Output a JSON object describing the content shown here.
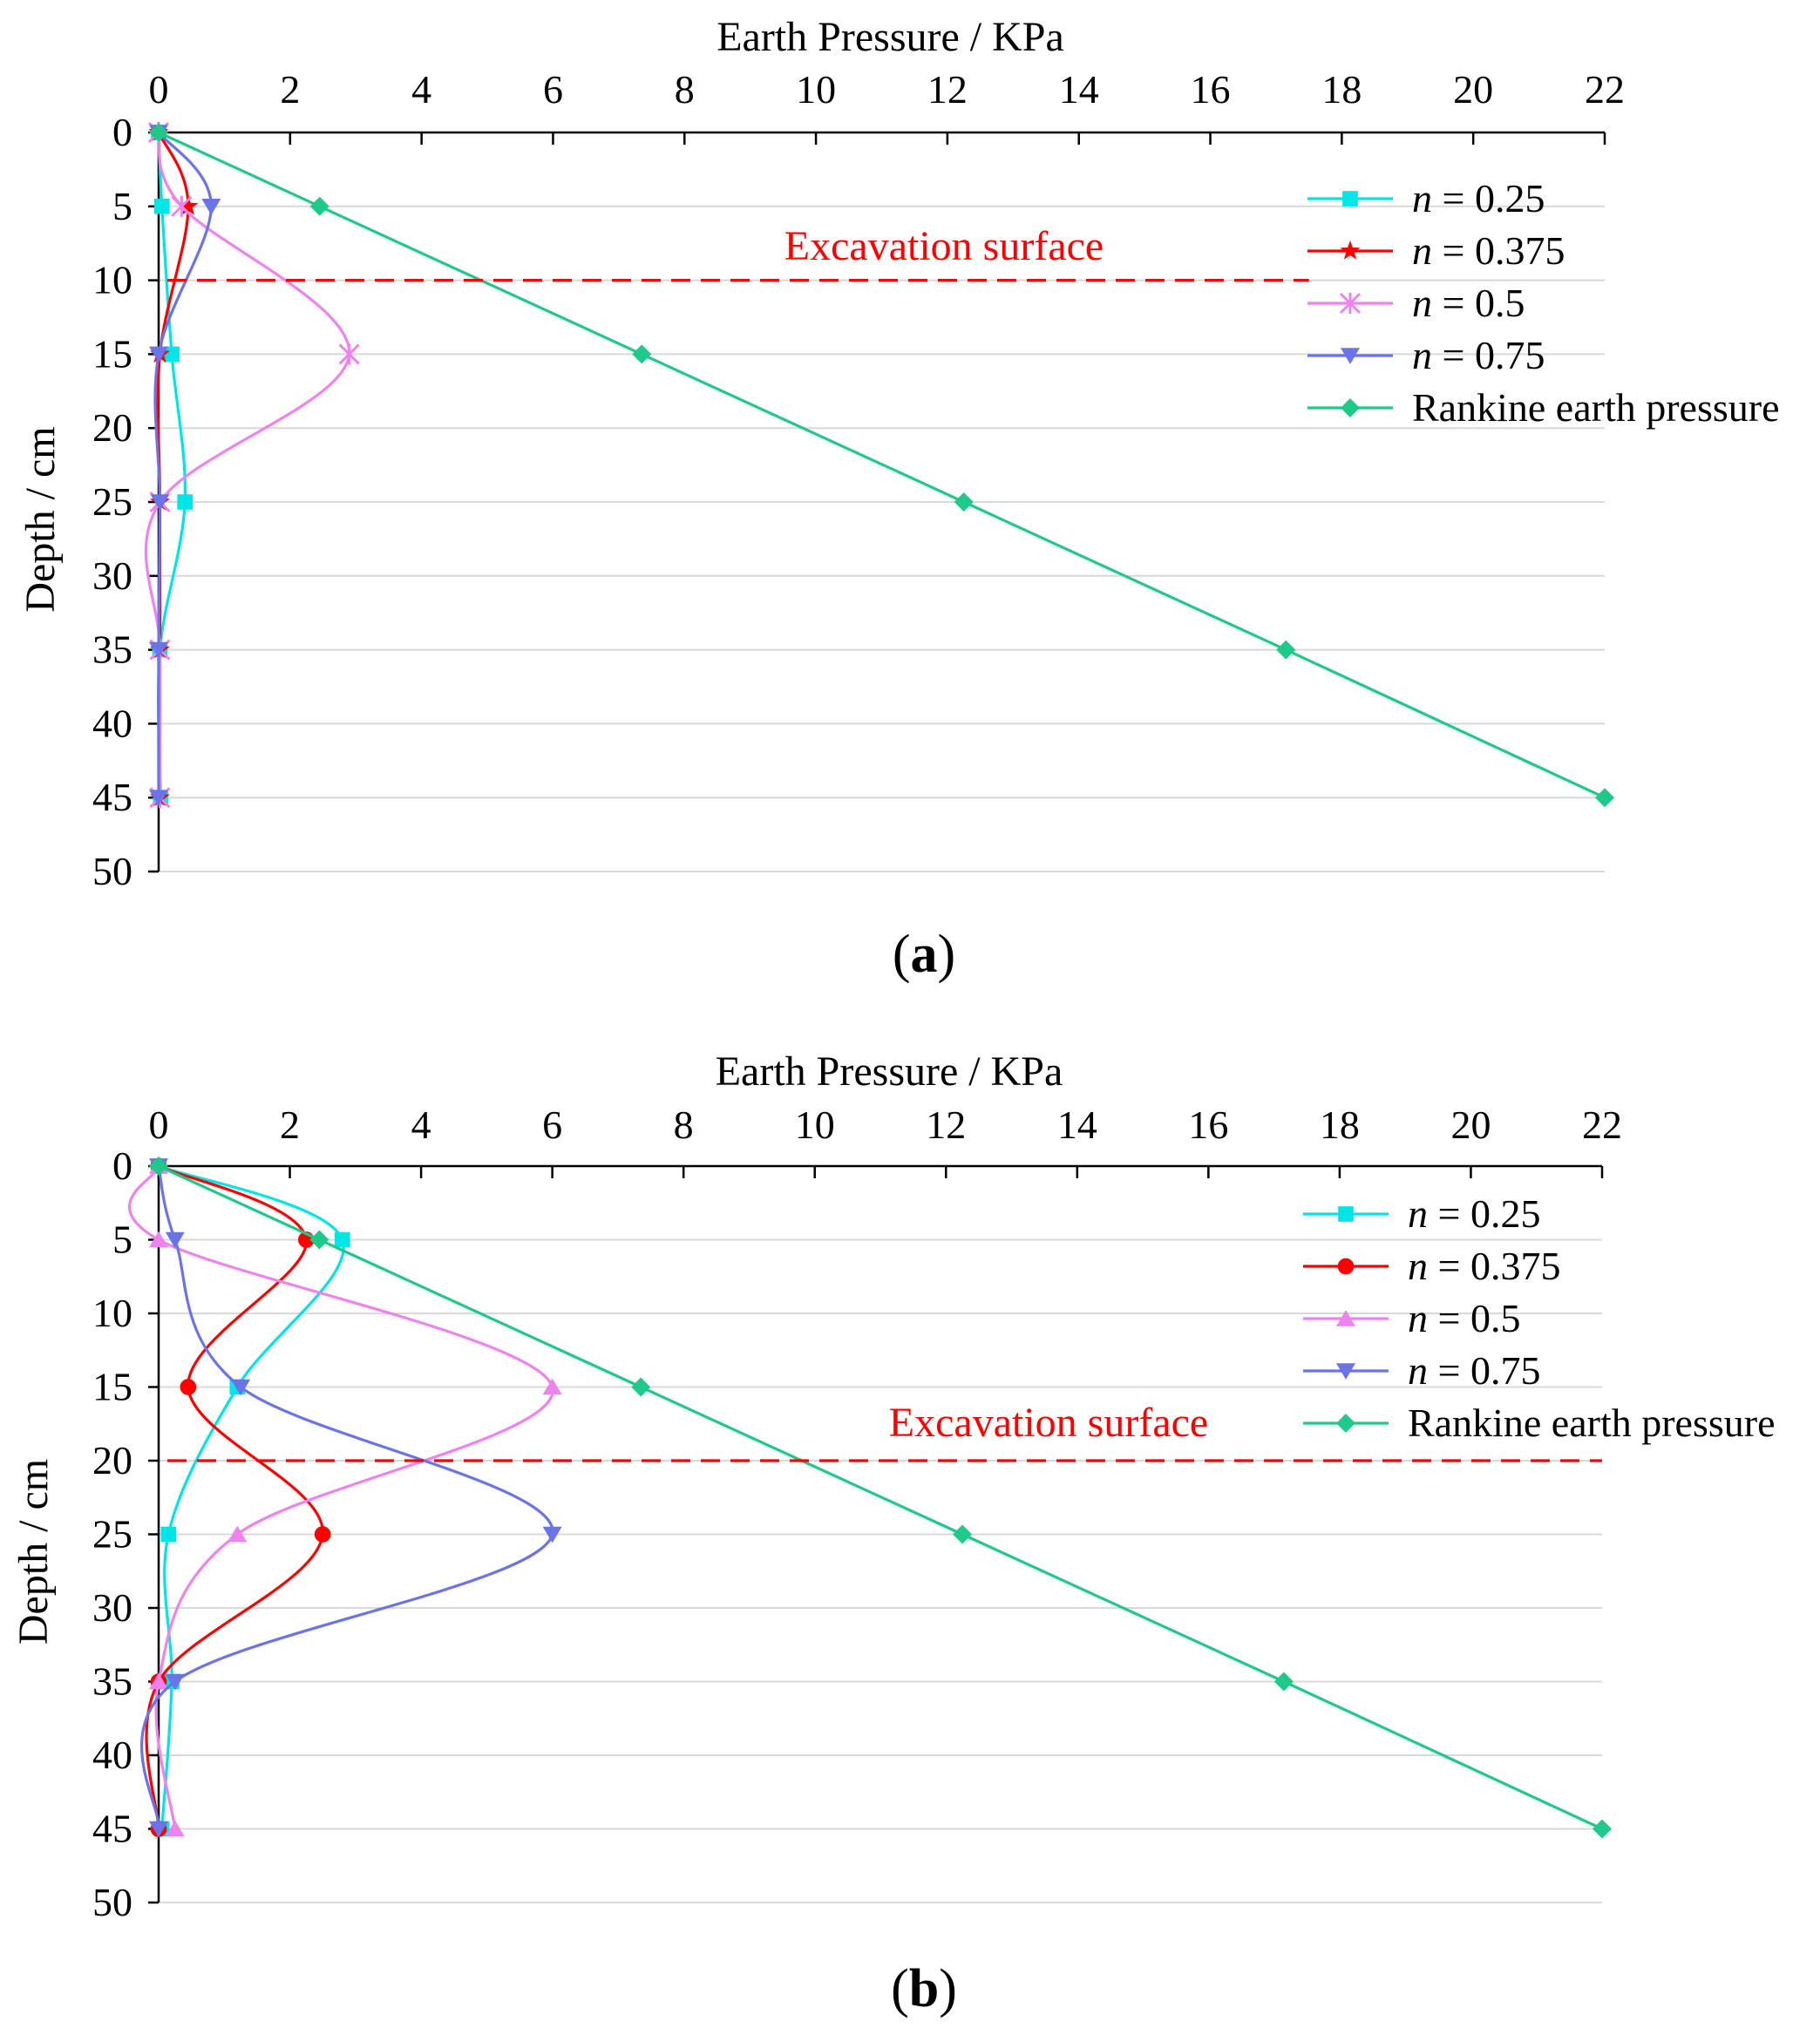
{
  "chart_data": [
    {
      "type": "line",
      "panel_label": "(a)",
      "title": "",
      "xlabel": "Earth Pressure / KPa",
      "ylabel": "Depth / cm",
      "x_axis_position": "top",
      "y_axis_inverted": true,
      "xlim": [
        0,
        22
      ],
      "ylim": [
        0,
        50
      ],
      "xticks": [
        0,
        2,
        4,
        6,
        8,
        10,
        12,
        14,
        16,
        18,
        20,
        22
      ],
      "yticks": [
        0,
        5,
        10,
        15,
        20,
        25,
        30,
        35,
        40,
        45,
        50
      ],
      "grid": "horizontal",
      "legend": "top-right",
      "annotation": {
        "text": "Excavation surface",
        "depth": 10,
        "color": "#ff0000",
        "x_end": 17.5
      },
      "series": [
        {
          "name": "n = 0.25",
          "label_var": "n",
          "label_rest": " = 0.25",
          "color": "#00e5e5",
          "marker": "square",
          "x": [
            0,
            0.05,
            0.2,
            0.4,
            0.02,
            0.03
          ],
          "y": [
            0,
            5,
            15,
            25,
            35,
            45
          ]
        },
        {
          "name": "n = 0.375",
          "label_var": "n",
          "label_rest": " = 0.375",
          "color": "#ff0000",
          "marker": "star",
          "x": [
            0,
            0.45,
            0.02,
            0.02,
            0.02,
            0.02
          ],
          "y": [
            0,
            5,
            15,
            25,
            35,
            45
          ]
        },
        {
          "name": "n = 0.5",
          "label_var": "n",
          "label_rest": " = 0.5",
          "color": "#ee82ee",
          "marker": "x",
          "x": [
            0,
            0.35,
            2.9,
            0.02,
            0.02,
            0.02
          ],
          "y": [
            0,
            5,
            15,
            25,
            35,
            45
          ]
        },
        {
          "name": "n = 0.75",
          "label_var": "n",
          "label_rest": " = 0.75",
          "color": "#6a73e8",
          "marker": "triangle-down",
          "x": [
            0,
            0.8,
            0.0,
            0.02,
            0.0,
            0.0
          ],
          "y": [
            0,
            5,
            15,
            25,
            35,
            45
          ]
        },
        {
          "name": "Rankine earth pressure",
          "label_var": "",
          "label_rest": "Rankine earth pressure",
          "color": "#1fc98a",
          "marker": "diamond",
          "x": [
            0,
            2.45,
            7.35,
            12.25,
            17.15,
            22.0
          ],
          "y": [
            0,
            5,
            15,
            25,
            35,
            45
          ]
        }
      ]
    },
    {
      "type": "line",
      "panel_label": "(b)",
      "title": "",
      "xlabel": "Earth Pressure / KPa",
      "ylabel": "Depth / cm",
      "x_axis_position": "top",
      "y_axis_inverted": true,
      "xlim": [
        0,
        22
      ],
      "ylim": [
        0,
        50
      ],
      "xticks": [
        0,
        2,
        4,
        6,
        8,
        10,
        12,
        14,
        16,
        18,
        20,
        22
      ],
      "yticks": [
        0,
        5,
        10,
        15,
        20,
        25,
        30,
        35,
        40,
        45,
        50
      ],
      "grid": "horizontal",
      "legend": "top-right",
      "annotation": {
        "text": "Excavation surface",
        "depth": 20,
        "color": "#ff0000",
        "x_end": 22
      },
      "series": [
        {
          "name": "n = 0.25",
          "label_var": "n",
          "label_rest": " = 0.25",
          "color": "#00e5e5",
          "marker": "square",
          "x": [
            0,
            2.8,
            1.2,
            0.15,
            0.2,
            0.05
          ],
          "y": [
            0,
            5,
            15,
            25,
            35,
            45
          ]
        },
        {
          "name": "n = 0.375",
          "label_var": "n",
          "label_rest": " = 0.375",
          "color": "#ff0000",
          "marker": "circle",
          "x": [
            0,
            2.25,
            0.45,
            2.5,
            0.0,
            0.0
          ],
          "y": [
            0,
            5,
            15,
            25,
            35,
            45
          ]
        },
        {
          "name": "n = 0.5",
          "label_var": "n",
          "label_rest": " = 0.5",
          "color": "#ee82ee",
          "marker": "triangle-up",
          "x": [
            0,
            0.0,
            6.0,
            1.2,
            0.0,
            0.25
          ],
          "y": [
            0,
            5,
            15,
            25,
            35,
            45
          ]
        },
        {
          "name": "n = 0.75",
          "label_var": "n",
          "label_rest": " = 0.75",
          "color": "#6a73e8",
          "marker": "triangle-down",
          "x": [
            0,
            0.25,
            1.25,
            6.0,
            0.25,
            0.0
          ],
          "y": [
            0,
            5,
            15,
            25,
            35,
            45
          ]
        },
        {
          "name": "Rankine earth pressure",
          "label_var": "",
          "label_rest": "Rankine earth pressure",
          "color": "#1fc98a",
          "marker": "diamond",
          "x": [
            0,
            2.45,
            7.35,
            12.25,
            17.15,
            22.0
          ],
          "y": [
            0,
            5,
            15,
            25,
            35,
            45
          ]
        }
      ]
    }
  ]
}
